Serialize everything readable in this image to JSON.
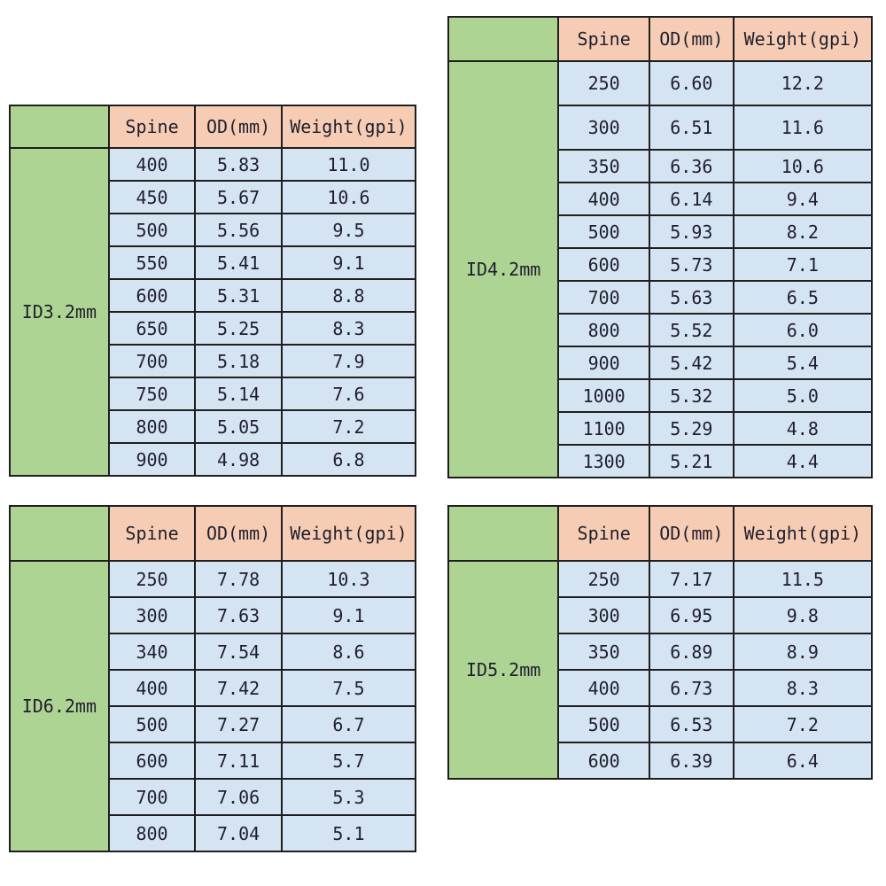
{
  "page": {
    "background": "#ffffff"
  },
  "colors": {
    "label_bg": "#aed494",
    "header_bg": "#f6cdb4",
    "cell_bg": "#d5e4f2",
    "border": "#1e1e1e",
    "text": "#1f1f2d"
  },
  "chart_data": [
    {
      "type": "table",
      "title": "ID3.2mm",
      "columns": [
        "Spine",
        "OD(mm)",
        "Weight(gpi)"
      ],
      "rows": [
        [
          "400",
          "5.83",
          "11.0"
        ],
        [
          "450",
          "5.67",
          "10.6"
        ],
        [
          "500",
          "5.56",
          "9.5"
        ],
        [
          "550",
          "5.41",
          "9.1"
        ],
        [
          "600",
          "5.31",
          "8.8"
        ],
        [
          "650",
          "5.25",
          "8.3"
        ],
        [
          "700",
          "5.18",
          "7.9"
        ],
        [
          "750",
          "5.14",
          "7.6"
        ],
        [
          "800",
          "5.05",
          "7.2"
        ],
        [
          "900",
          "4.98",
          "6.8"
        ]
      ]
    },
    {
      "type": "table",
      "title": "ID4.2mm",
      "columns": [
        "Spine",
        "OD(mm)",
        "Weight(gpi)"
      ],
      "rows": [
        [
          "250",
          "6.60",
          "12.2"
        ],
        [
          "300",
          "6.51",
          "11.6"
        ],
        [
          "350",
          "6.36",
          "10.6"
        ],
        [
          "400",
          "6.14",
          "9.4"
        ],
        [
          "500",
          "5.93",
          "8.2"
        ],
        [
          "600",
          "5.73",
          "7.1"
        ],
        [
          "700",
          "5.63",
          "6.5"
        ],
        [
          "800",
          "5.52",
          "6.0"
        ],
        [
          "900",
          "5.42",
          "5.4"
        ],
        [
          "1000",
          "5.32",
          "5.0"
        ],
        [
          "1100",
          "5.29",
          "4.8"
        ],
        [
          "1300",
          "5.21",
          "4.4"
        ]
      ]
    },
    {
      "type": "table",
      "title": "ID6.2mm",
      "columns": [
        "Spine",
        "OD(mm)",
        "Weight(gpi)"
      ],
      "rows": [
        [
          "250",
          "7.78",
          "10.3"
        ],
        [
          "300",
          "7.63",
          "9.1"
        ],
        [
          "340",
          "7.54",
          "8.6"
        ],
        [
          "400",
          "7.42",
          "7.5"
        ],
        [
          "500",
          "7.27",
          "6.7"
        ],
        [
          "600",
          "7.11",
          "5.7"
        ],
        [
          "700",
          "7.06",
          "5.3"
        ],
        [
          "800",
          "7.04",
          "5.1"
        ]
      ]
    },
    {
      "type": "table",
      "title": "ID5.2mm",
      "columns": [
        "Spine",
        "OD(mm)",
        "Weight(gpi)"
      ],
      "rows": [
        [
          "250",
          "7.17",
          "11.5"
        ],
        [
          "300",
          "6.95",
          "9.8"
        ],
        [
          "350",
          "6.89",
          "8.9"
        ],
        [
          "400",
          "6.73",
          "8.3"
        ],
        [
          "500",
          "6.53",
          "7.2"
        ],
        [
          "600",
          "6.39",
          "6.4"
        ]
      ]
    }
  ]
}
